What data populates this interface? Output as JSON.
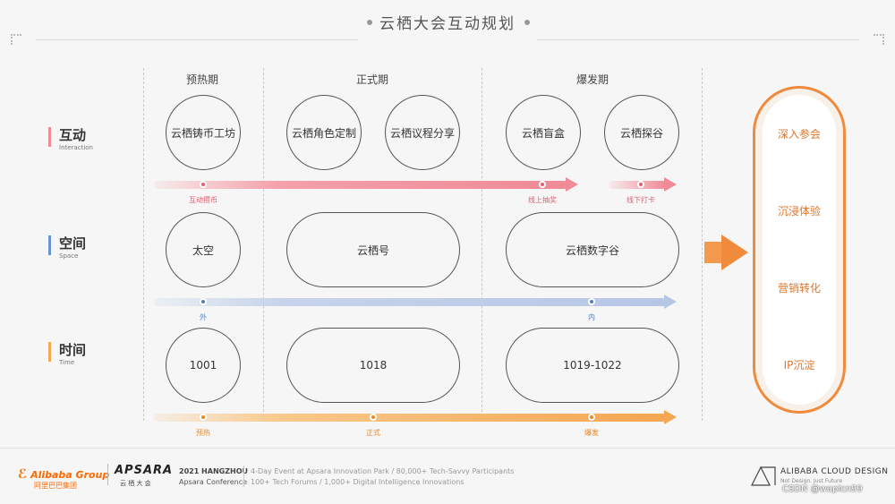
{
  "title": "云栖大会互动规划",
  "phases": [
    "预热期",
    "正式期",
    "爆发期"
  ],
  "rows": {
    "interaction": {
      "main": "互动",
      "sub": "Interaction"
    },
    "space": {
      "main": "空间",
      "sub": "Space"
    },
    "time": {
      "main": "时间",
      "sub": "Time"
    }
  },
  "interaction_nodes": [
    "云栖铸币工坊",
    "云栖角色定制",
    "云栖议程分享",
    "云栖盲盒",
    "云栖探谷"
  ],
  "interaction_markers": [
    "互动攒币",
    "线上抽奖",
    "线下打卡"
  ],
  "space_nodes": [
    "太空",
    "云栖号",
    "云栖数字谷"
  ],
  "space_markers": [
    "外",
    "内"
  ],
  "time_nodes": [
    "1001",
    "1018",
    "1019-1022"
  ],
  "time_markers": [
    "预热",
    "正式",
    "爆发"
  ],
  "results": [
    "深入参会",
    "沉浸体验",
    "营销转化",
    "IP沉淀"
  ],
  "footer": {
    "alibaba": "Alibaba Group",
    "alibaba_cn": "阿里巴巴集团",
    "apsara": "APSARA",
    "apsara_cn": "云 栖 大 会",
    "event_title": "2021 HANGZHOU",
    "event_sub": "Apsara Conference",
    "info_line1": "4-Day Event at Apsara Innovation Park  /  80,000+ Tech-Savvy Participants",
    "info_line2": "100+ Tech Forums  /  1,000+ Digital Intelligence Innovations",
    "acd": "ALIBABA CLOUD DESIGN",
    "acd_sub": "Not Design. Just Future",
    "watermark": "CSDN @wapicn99"
  },
  "colors": {
    "interaction": "#f08a96",
    "space": "#8eb0dd",
    "time": "#f5a650",
    "accent": "#f08a3c"
  }
}
